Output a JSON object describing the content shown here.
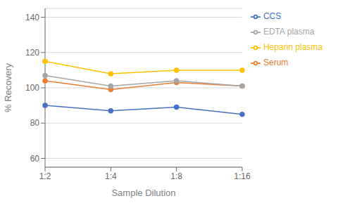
{
  "chart_data": {
    "type": "line",
    "categories": [
      "1:2",
      "1:4",
      "1:8",
      "1:16"
    ],
    "series": [
      {
        "name": "CCS",
        "color": "#4472c4",
        "values": [
          90,
          87,
          89,
          85
        ],
        "marker": "circle"
      },
      {
        "name": "Serum",
        "color": "#ed7d31",
        "values": [
          104,
          99,
          103,
          101
        ],
        "marker": "circle"
      },
      {
        "name": "EDTA plasma",
        "color": "#a5a5a5",
        "values": [
          107,
          101,
          104,
          101
        ],
        "marker": "circle"
      },
      {
        "name": "Heparin plasma",
        "color": "#ffc000",
        "values": [
          115,
          108,
          110,
          110
        ],
        "marker": "circle"
      }
    ],
    "xlabel": "Sample Dilution",
    "ylabel": "% Recovery",
    "ylim": [
      55,
      145
    ],
    "yticks": [
      60,
      80,
      100,
      120,
      140
    ],
    "grid": true,
    "legend": "right"
  }
}
